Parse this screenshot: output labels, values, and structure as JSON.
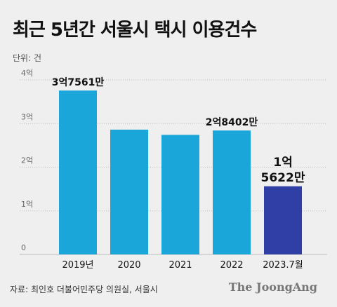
{
  "header": {
    "title": "최근 5년간 서울시 택시 이용건수",
    "unit": "단위: 건"
  },
  "footer": {
    "source": "자료: 최인호 더불어민주당 의원실, 서울시",
    "brand": "The JoongAng"
  },
  "colors": {
    "bar": "#1aa6d9",
    "highlight": "#2f3fa6",
    "grid": "#bdbdbd"
  },
  "chart_data": {
    "type": "bar",
    "categories": [
      "2019년",
      "2020",
      "2021",
      "2022",
      "2023.7월"
    ],
    "values": [
      375610000,
      286000000,
      274000000,
      284020000,
      156220000
    ],
    "highlight_index": 4,
    "ylim": [
      0,
      400000000
    ],
    "yticks": [
      {
        "value": 0,
        "label": "0"
      },
      {
        "value": 100000000,
        "label": "1억"
      },
      {
        "value": 200000000,
        "label": "2억"
      },
      {
        "value": 300000000,
        "label": "3억"
      },
      {
        "value": 400000000,
        "label": "4억"
      }
    ],
    "data_labels": [
      {
        "index": 0,
        "lines": [
          "3억7561만"
        ]
      },
      {
        "index": 3,
        "lines": [
          "2억8402만"
        ]
      },
      {
        "index": 4,
        "lines": [
          "1억",
          "5622만"
        ]
      }
    ],
    "grid": true,
    "title": "최근 5년간 서울시 택시 이용건수",
    "xlabel": "",
    "ylabel": ""
  }
}
